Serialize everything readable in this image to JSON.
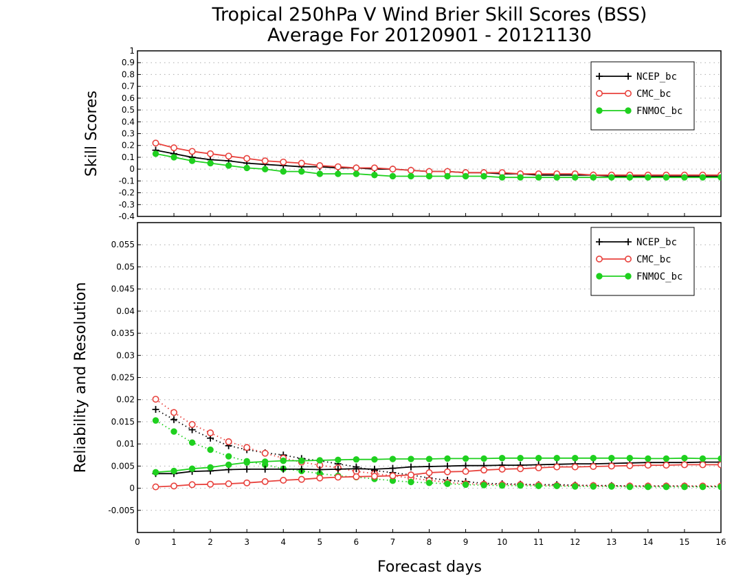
{
  "title": {
    "line1": "Tropical 250hPa V Wind Brier Skill Scores (BSS)",
    "line2": "Average For 20120901 - 20121130"
  },
  "xlabel": "Forecast days",
  "colors": {
    "ncep": "#000000",
    "cmc": "#e8413c",
    "fnmoc": "#1fd01f",
    "grid": "#aaaaaa"
  },
  "chart_data": [
    {
      "type": "line",
      "ylabel": "Skill Scores",
      "xlim": [
        0,
        16
      ],
      "ylim": [
        -0.4,
        1
      ],
      "xticks": [
        "0",
        "1",
        "2",
        "3",
        "4",
        "5",
        "6",
        "7",
        "8",
        "9",
        "10",
        "11",
        "12",
        "13",
        "14",
        "15",
        "16"
      ],
      "yticks": [
        "-0.4",
        "-0.3",
        "-0.2",
        "-0.1",
        "0",
        "0.1",
        "0.2",
        "0.3",
        "0.4",
        "0.5",
        "0.6",
        "0.7",
        "0.8",
        "0.9",
        "1"
      ],
      "legend": "top-right",
      "grid": true,
      "x": [
        0.5,
        1,
        1.5,
        2,
        2.5,
        3,
        3.5,
        4,
        4.5,
        5,
        5.5,
        6,
        6.5,
        7,
        7.5,
        8,
        8.5,
        9,
        9.5,
        10,
        10.5,
        11,
        11.5,
        12,
        12.5,
        13,
        13.5,
        14,
        14.5,
        15,
        15.5,
        16
      ],
      "series": [
        {
          "name": "NCEP_bc",
          "marker": "plus",
          "values": [
            0.16,
            0.13,
            0.1,
            0.08,
            0.07,
            0.05,
            0.04,
            0.03,
            0.02,
            0.02,
            0.01,
            0.01,
            0.0,
            0.0,
            -0.01,
            -0.02,
            -0.02,
            -0.03,
            -0.03,
            -0.04,
            -0.04,
            -0.05,
            -0.05,
            -0.05,
            -0.05,
            -0.06,
            -0.06,
            -0.06,
            -0.06,
            -0.06,
            -0.06,
            -0.06
          ]
        },
        {
          "name": "CMC_bc",
          "marker": "open-circle",
          "values": [
            0.22,
            0.18,
            0.15,
            0.13,
            0.11,
            0.09,
            0.07,
            0.06,
            0.05,
            0.03,
            0.02,
            0.01,
            0.01,
            0.0,
            -0.01,
            -0.02,
            -0.02,
            -0.03,
            -0.03,
            -0.03,
            -0.04,
            -0.04,
            -0.04,
            -0.04,
            -0.05,
            -0.05,
            -0.05,
            -0.05,
            -0.05,
            -0.05,
            -0.05,
            -0.05
          ]
        },
        {
          "name": "FNMOC_bc",
          "marker": "filled-circle",
          "values": [
            0.13,
            0.1,
            0.07,
            0.05,
            0.03,
            0.01,
            0.0,
            -0.02,
            -0.02,
            -0.04,
            -0.04,
            -0.04,
            -0.05,
            -0.06,
            -0.06,
            -0.06,
            -0.06,
            -0.06,
            -0.06,
            -0.07,
            -0.07,
            -0.07,
            -0.07,
            -0.07,
            -0.07,
            -0.07,
            -0.07,
            -0.07,
            -0.07,
            -0.07,
            -0.07,
            -0.07
          ]
        }
      ]
    },
    {
      "type": "line",
      "ylabel": "Reliability and Resolution",
      "xlim": [
        0,
        16
      ],
      "ylim": [
        -0.01,
        0.06
      ],
      "xticks": [
        "0",
        "1",
        "2",
        "3",
        "4",
        "5",
        "6",
        "7",
        "8",
        "9",
        "10",
        "11",
        "12",
        "13",
        "14",
        "15",
        "16"
      ],
      "yticks": [
        "-0.005",
        "0",
        "0.005",
        "0.01",
        "0.015",
        "0.02",
        "0.025",
        "0.03",
        "0.035",
        "0.04",
        "0.045",
        "0.05",
        "0.055"
      ],
      "legend": "top-right",
      "grid": true,
      "x": [
        0.5,
        1,
        1.5,
        2,
        2.5,
        3,
        3.5,
        4,
        4.5,
        5,
        5.5,
        6,
        6.5,
        7,
        7.5,
        8,
        8.5,
        9,
        9.5,
        10,
        10.5,
        11,
        11.5,
        12,
        12.5,
        13,
        13.5,
        14,
        14.5,
        15,
        15.5,
        16
      ],
      "legend_series": [
        "NCEP_bc",
        "CMC_bc",
        "FNMOC_bc"
      ],
      "series": [
        {
          "name": "NCEP_bc",
          "component": "resolution",
          "style": "solid",
          "marker": "plus",
          "values": [
            0.0033,
            0.0033,
            0.0038,
            0.0039,
            0.0042,
            0.0043,
            0.0043,
            0.0043,
            0.0043,
            0.0042,
            0.0043,
            0.0044,
            0.0043,
            0.0045,
            0.0048,
            0.0049,
            0.005,
            0.0051,
            0.0051,
            0.0052,
            0.0052,
            0.0053,
            0.0054,
            0.0055,
            0.0055,
            0.0056,
            0.0057,
            0.0058,
            0.0058,
            0.0058,
            0.0059,
            0.0059
          ]
        },
        {
          "name": "NCEP_bc",
          "component": "reliability",
          "style": "dotted",
          "marker": "plus",
          "values": [
            0.0178,
            0.0155,
            0.0132,
            0.0113,
            0.0096,
            0.0087,
            0.008,
            0.0075,
            0.0067,
            0.0062,
            0.0055,
            0.0048,
            0.004,
            0.0035,
            0.003,
            0.0023,
            0.0018,
            0.0015,
            0.0011,
            0.001,
            0.0009,
            0.0008,
            0.0008,
            0.0007,
            0.0006,
            0.0006,
            0.0005,
            0.0005,
            0.0005,
            0.0005,
            0.0004,
            0.0004
          ]
        },
        {
          "name": "CMC_bc",
          "component": "resolution",
          "style": "solid",
          "marker": "open-circle",
          "values": [
            0.0003,
            0.0005,
            0.0008,
            0.0009,
            0.001,
            0.0012,
            0.0015,
            0.0018,
            0.002,
            0.0023,
            0.0025,
            0.0026,
            0.0027,
            0.0028,
            0.003,
            0.0035,
            0.0037,
            0.0038,
            0.0041,
            0.0043,
            0.0044,
            0.0046,
            0.0048,
            0.0048,
            0.0049,
            0.005,
            0.0051,
            0.0052,
            0.0052,
            0.0053,
            0.0053,
            0.0053
          ]
        },
        {
          "name": "CMC_bc",
          "component": "reliability",
          "style": "dotted",
          "marker": "open-circle",
          "values": [
            0.0201,
            0.0171,
            0.0144,
            0.0125,
            0.0105,
            0.0092,
            0.0079,
            0.0068,
            0.0059,
            0.0052,
            0.0046,
            0.0038,
            0.0033,
            0.0028,
            0.0023,
            0.0018,
            0.0013,
            0.001,
            0.0009,
            0.0008,
            0.0008,
            0.0007,
            0.0006,
            0.0006,
            0.0006,
            0.0005,
            0.0005,
            0.0005,
            0.0005,
            0.0005,
            0.0005,
            0.0005
          ]
        },
        {
          "name": "FNMOC_bc",
          "component": "resolution",
          "style": "solid",
          "marker": "filled-circle",
          "values": [
            0.0036,
            0.0039,
            0.0044,
            0.0047,
            0.0053,
            0.0058,
            0.006,
            0.0062,
            0.0062,
            0.0063,
            0.0064,
            0.0065,
            0.0065,
            0.0066,
            0.0066,
            0.0066,
            0.0067,
            0.0067,
            0.0067,
            0.0068,
            0.0068,
            0.0068,
            0.0068,
            0.0068,
            0.0068,
            0.0068,
            0.0068,
            0.0067,
            0.0067,
            0.0068,
            0.0067,
            0.0067
          ]
        },
        {
          "name": "FNMOC_bc",
          "component": "reliability",
          "style": "dotted",
          "marker": "filled-circle",
          "values": [
            0.0153,
            0.0128,
            0.0103,
            0.0087,
            0.0072,
            0.0061,
            0.0053,
            0.0044,
            0.0039,
            0.0033,
            0.0028,
            0.0025,
            0.0021,
            0.0017,
            0.0014,
            0.0012,
            0.001,
            0.0008,
            0.0007,
            0.0006,
            0.0006,
            0.0005,
            0.0005,
            0.0004,
            0.0004,
            0.0004,
            0.0003,
            0.0003,
            0.0003,
            0.0003,
            0.0003,
            0.0003
          ]
        }
      ]
    }
  ]
}
